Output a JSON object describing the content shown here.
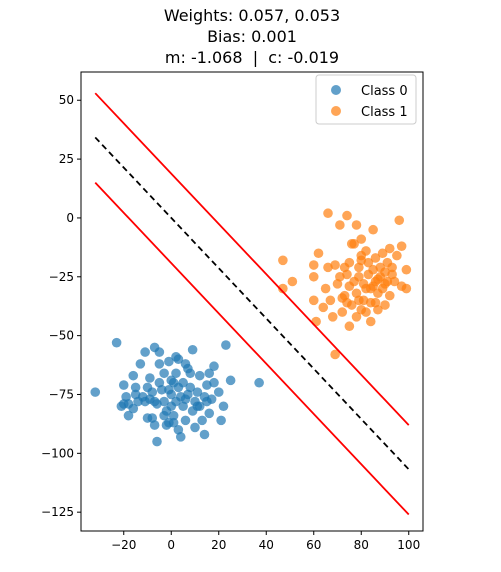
{
  "chart_data": {
    "type": "scatter",
    "title_lines": [
      "Weights: 0.057, 0.053",
      "Bias: 0.001",
      "m: -1.068  |  c: -0.019"
    ],
    "xlabel": "",
    "ylabel": "",
    "xlim": [
      -38,
      106
    ],
    "ylim": [
      -133,
      62
    ],
    "xticks": [
      -20,
      0,
      20,
      40,
      60,
      80,
      100
    ],
    "yticks": [
      50,
      25,
      0,
      -25,
      -50,
      -75,
      -100,
      -125
    ],
    "grid": false,
    "legend_position": "top-right",
    "series": [
      {
        "name": "Class 0",
        "color": "#1f77b4",
        "points": [
          [
            -32,
            -74
          ],
          [
            -23,
            -53
          ],
          [
            -20,
            -71
          ],
          [
            -21,
            -80
          ],
          [
            -19,
            -76
          ],
          [
            -18,
            -84
          ],
          [
            -18,
            -79
          ],
          [
            -16,
            -67
          ],
          [
            -16,
            -81
          ],
          [
            -15,
            -75
          ],
          [
            -13,
            -62
          ],
          [
            -15,
            -72
          ],
          [
            -12,
            -76
          ],
          [
            -11,
            -78
          ],
          [
            -10,
            -72
          ],
          [
            -9,
            -68
          ],
          [
            -8,
            -74
          ],
          [
            -8,
            -85
          ],
          [
            -9,
            -77
          ],
          [
            -7,
            -55
          ],
          [
            -7,
            -78
          ],
          [
            -6,
            -79
          ],
          [
            -5,
            -70
          ],
          [
            -5,
            -62
          ],
          [
            -4,
            -73
          ],
          [
            -3,
            -66
          ],
          [
            -3,
            -78
          ],
          [
            -2,
            -82
          ],
          [
            -2,
            -88
          ],
          [
            -1,
            -87
          ],
          [
            -1,
            -73
          ],
          [
            0,
            -80
          ],
          [
            0,
            -75
          ],
          [
            1,
            -70
          ],
          [
            1,
            -84
          ],
          [
            2,
            -78
          ],
          [
            2,
            -66
          ],
          [
            3,
            -72
          ],
          [
            3,
            -60
          ],
          [
            3,
            -90
          ],
          [
            4,
            -76
          ],
          [
            5,
            -80
          ],
          [
            5,
            -70
          ],
          [
            6,
            -62
          ],
          [
            6,
            -86
          ],
          [
            7,
            -75
          ],
          [
            8,
            -72
          ],
          [
            8,
            -66
          ],
          [
            9,
            -82
          ],
          [
            10,
            -78
          ],
          [
            11,
            -74
          ],
          [
            12,
            -80
          ],
          [
            12,
            -67
          ],
          [
            13,
            -86
          ],
          [
            14,
            -76
          ],
          [
            15,
            -71
          ],
          [
            16,
            -83
          ],
          [
            17,
            -77
          ],
          [
            18,
            -70
          ],
          [
            18,
            -63
          ],
          [
            20,
            -74
          ],
          [
            21,
            -86
          ],
          [
            22,
            -80
          ],
          [
            23,
            -54
          ],
          [
            -6,
            -95
          ],
          [
            4,
            -93
          ],
          [
            14,
            -92
          ],
          [
            25,
            -69
          ],
          [
            37,
            -70
          ],
          [
            -5,
            -57
          ],
          [
            -1,
            -61
          ],
          [
            2,
            -59
          ],
          [
            7,
            -64
          ],
          [
            9,
            -56
          ],
          [
            -11,
            -57
          ],
          [
            -3,
            -84
          ],
          [
            10,
            -89
          ],
          [
            16,
            -66
          ],
          [
            -14,
            -78
          ],
          [
            6,
            -77
          ],
          [
            -20,
            -79
          ],
          [
            1,
            -87
          ],
          [
            11,
            -80
          ],
          [
            -10,
            -85
          ],
          [
            0,
            -69
          ],
          [
            15,
            -78
          ],
          [
            -7,
            -88
          ]
        ]
      },
      {
        "name": "Class 1",
        "color": "#ff7f0e",
        "points": [
          [
            47,
            -30
          ],
          [
            47,
            -18
          ],
          [
            51,
            -27
          ],
          [
            60,
            -25
          ],
          [
            60,
            -35
          ],
          [
            61,
            -44
          ],
          [
            60,
            -20
          ],
          [
            62,
            -15
          ],
          [
            64,
            -38
          ],
          [
            65,
            -30
          ],
          [
            66,
            -21
          ],
          [
            67,
            -35
          ],
          [
            68,
            -42
          ],
          [
            69,
            -20
          ],
          [
            69,
            -58
          ],
          [
            70,
            -28
          ],
          [
            71,
            -25
          ],
          [
            72,
            -40
          ],
          [
            73,
            -33
          ],
          [
            73,
            -21
          ],
          [
            74,
            -24
          ],
          [
            74,
            -36
          ],
          [
            75,
            -29
          ],
          [
            75,
            -19
          ],
          [
            76,
            -37
          ],
          [
            77,
            -27
          ],
          [
            77,
            -11
          ],
          [
            78,
            -32
          ],
          [
            78,
            -42
          ],
          [
            79,
            -21
          ],
          [
            79,
            -25
          ],
          [
            80,
            -39
          ],
          [
            80,
            -9
          ],
          [
            81,
            -35
          ],
          [
            81,
            -28
          ],
          [
            82,
            -30
          ],
          [
            82,
            -14
          ],
          [
            83,
            -24
          ],
          [
            83,
            -19
          ],
          [
            84,
            -36
          ],
          [
            84,
            -44
          ],
          [
            85,
            -22
          ],
          [
            85,
            -29
          ],
          [
            86,
            -27
          ],
          [
            86,
            -17
          ],
          [
            87,
            -39
          ],
          [
            87,
            -32
          ],
          [
            88,
            -21
          ],
          [
            88,
            -25
          ],
          [
            89,
            -30
          ],
          [
            89,
            -15
          ],
          [
            90,
            -23
          ],
          [
            90,
            -37
          ],
          [
            91,
            -19
          ],
          [
            91,
            -27
          ],
          [
            92,
            -13
          ],
          [
            92,
            -33
          ],
          [
            93,
            -21
          ],
          [
            94,
            -27
          ],
          [
            95,
            -16
          ],
          [
            96,
            -1
          ],
          [
            97,
            -29
          ],
          [
            99,
            -22
          ],
          [
            99,
            -30
          ],
          [
            97,
            -12
          ],
          [
            85,
            -5
          ],
          [
            78,
            -3
          ],
          [
            76,
            -11
          ],
          [
            71,
            -3
          ],
          [
            66,
            2
          ],
          [
            74,
            1
          ],
          [
            80,
            -16
          ],
          [
            84,
            -30
          ],
          [
            72,
            -34
          ],
          [
            79,
            -35
          ],
          [
            87,
            -26
          ],
          [
            90,
            -28
          ],
          [
            82,
            -40
          ],
          [
            75,
            -46
          ],
          [
            93,
            -24
          ],
          [
            86,
            -36
          ],
          [
            80,
            -18
          ]
        ]
      }
    ],
    "lines": [
      {
        "role": "decision-boundary",
        "color": "#000000",
        "style": "dashed",
        "x": [
          -32,
          100
        ],
        "y": [
          34.2,
          -106.8
        ]
      },
      {
        "role": "margin-upper",
        "color": "#ff0000",
        "style": "solid",
        "x": [
          -32,
          100
        ],
        "y": [
          53,
          -88
        ]
      },
      {
        "role": "margin-lower",
        "color": "#ff0000",
        "style": "solid",
        "x": [
          -32,
          100
        ],
        "y": [
          15,
          -126
        ]
      }
    ]
  }
}
